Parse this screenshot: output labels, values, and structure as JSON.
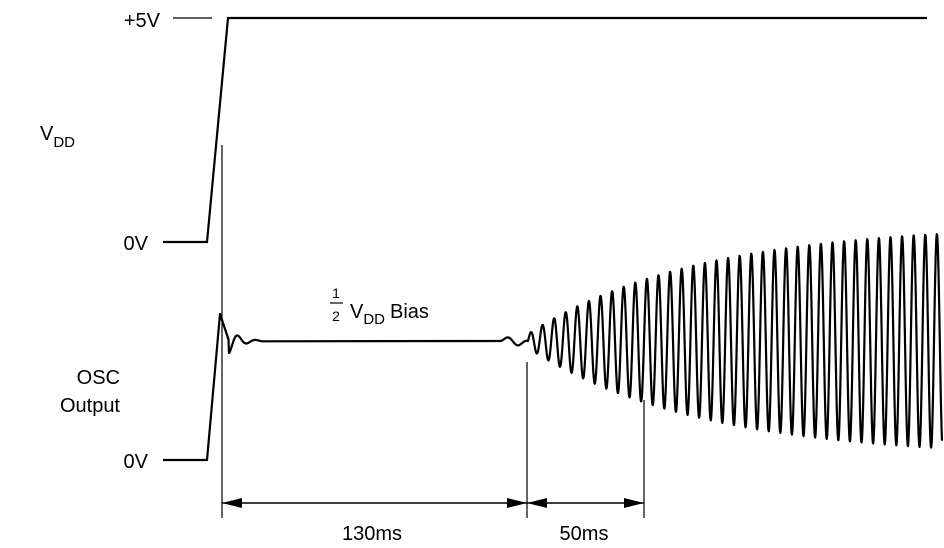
{
  "labels": {
    "vdd_high": "+5V",
    "vdd_main": "V",
    "vdd_sub": "DD",
    "vdd_zero": "0V",
    "osc_line1": "OSC",
    "osc_line2": "Output",
    "osc_zero": "0V",
    "bias_num": "1",
    "bias_den": "2",
    "bias_v": "V",
    "bias_sub": "DD",
    "bias_text": "Bias",
    "interval_1": "130ms",
    "interval_2": "50ms"
  },
  "colors": {
    "ink": "#000000",
    "background": "#ffffff"
  }
}
